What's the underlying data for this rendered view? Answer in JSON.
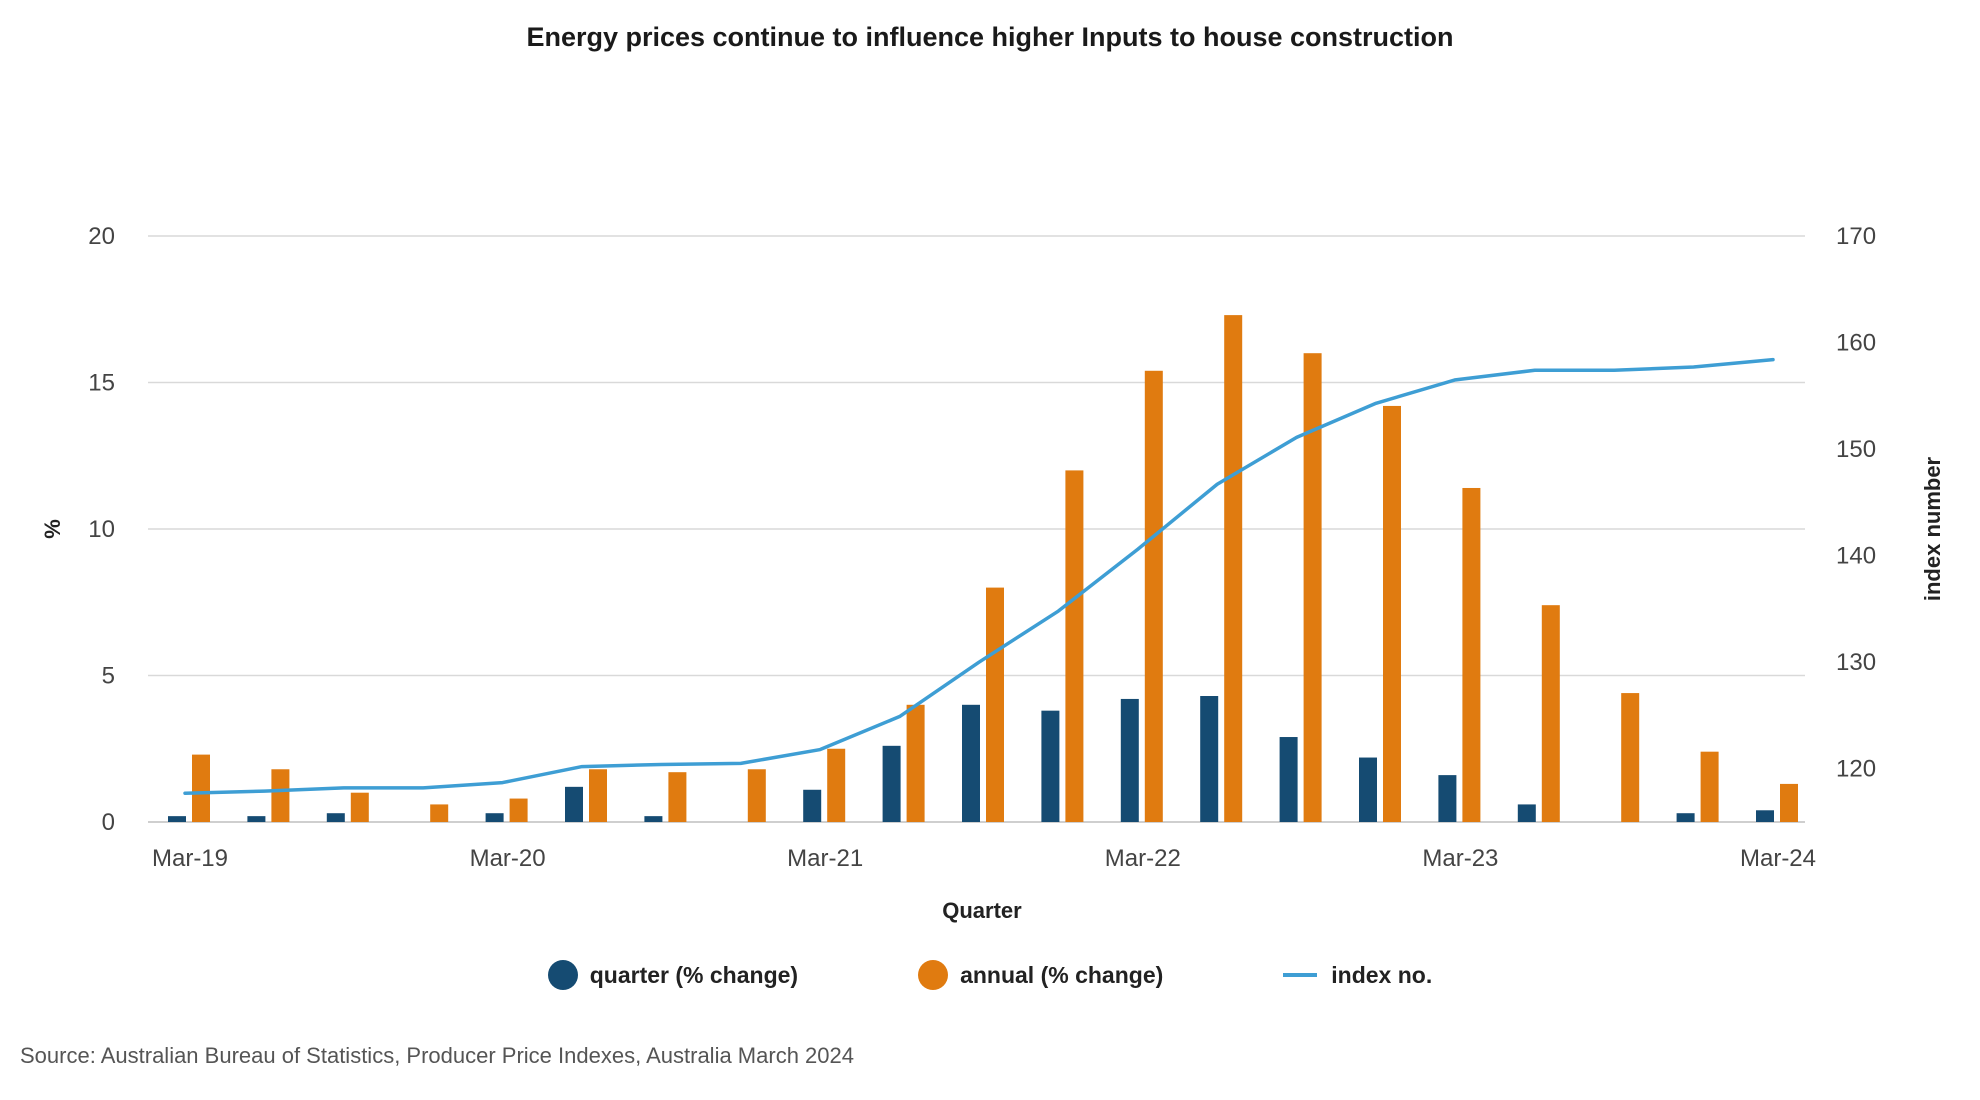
{
  "title": "Energy prices continue to influence higher Inputs to house construction",
  "source": "Source: Australian Bureau of Statistics, Producer Price Indexes, Australia March 2024",
  "colors": {
    "quarter": "#154b72",
    "annual": "#e07b10",
    "index": "#3e9ed4",
    "grid": "#d9d9d9"
  },
  "legend": [
    {
      "label": "quarter (% change)",
      "type": "dot",
      "color": "#154b72"
    },
    {
      "label": "annual (% change)",
      "type": "dot",
      "color": "#e07b10"
    },
    {
      "label": "index no.",
      "type": "line",
      "color": "#3e9ed4"
    }
  ],
  "chart_data": {
    "type": "bar",
    "title": "Energy prices continue to influence higher Inputs to house construction",
    "xlabel": "Quarter",
    "ylabel": "%",
    "y2label": "index number",
    "ylim": [
      0,
      20
    ],
    "y2lim": [
      115,
      170
    ],
    "yticks": [
      "0",
      "5",
      "10",
      "15",
      "20"
    ],
    "y2ticks": [
      "120",
      "130",
      "140",
      "150",
      "160",
      "170"
    ],
    "xtick_labels": [
      "Mar-19",
      "Mar-20",
      "Mar-21",
      "Mar-22",
      "Mar-23",
      "Mar-24"
    ],
    "grid": true,
    "legend_position": "bottom",
    "categories": [
      "Mar-19",
      "Jun-19",
      "Sep-19",
      "Dec-19",
      "Mar-20",
      "Jun-20",
      "Sep-20",
      "Dec-20",
      "Mar-21",
      "Jun-21",
      "Sep-21",
      "Dec-21",
      "Mar-22",
      "Jun-22",
      "Sep-22",
      "Dec-22",
      "Mar-23",
      "Jun-23",
      "Sep-23",
      "Dec-23",
      "Mar-24"
    ],
    "series": [
      {
        "name": "quarter (% change)",
        "kind": "bar",
        "axis": "left",
        "values": [
          0.2,
          0.2,
          0.3,
          0.0,
          0.3,
          1.2,
          0.2,
          0.0,
          1.1,
          2.6,
          4.0,
          3.8,
          4.2,
          4.3,
          2.9,
          2.2,
          1.6,
          0.6,
          0.0,
          0.3,
          0.4
        ]
      },
      {
        "name": "annual (% change)",
        "kind": "bar",
        "axis": "left",
        "values": [
          2.3,
          1.8,
          1.0,
          0.6,
          0.8,
          1.8,
          1.7,
          1.8,
          2.5,
          4.0,
          8.0,
          12.0,
          15.4,
          17.3,
          16.0,
          14.2,
          11.4,
          7.4,
          4.4,
          2.4,
          1.3
        ]
      },
      {
        "name": "index no.",
        "kind": "line",
        "axis": "right",
        "values": [
          117.7,
          117.9,
          118.2,
          118.2,
          118.7,
          120.2,
          120.4,
          120.5,
          121.8,
          124.9,
          130.0,
          134.8,
          140.6,
          146.7,
          151.1,
          154.3,
          156.5,
          157.4,
          157.4,
          157.7,
          158.4
        ]
      }
    ]
  }
}
